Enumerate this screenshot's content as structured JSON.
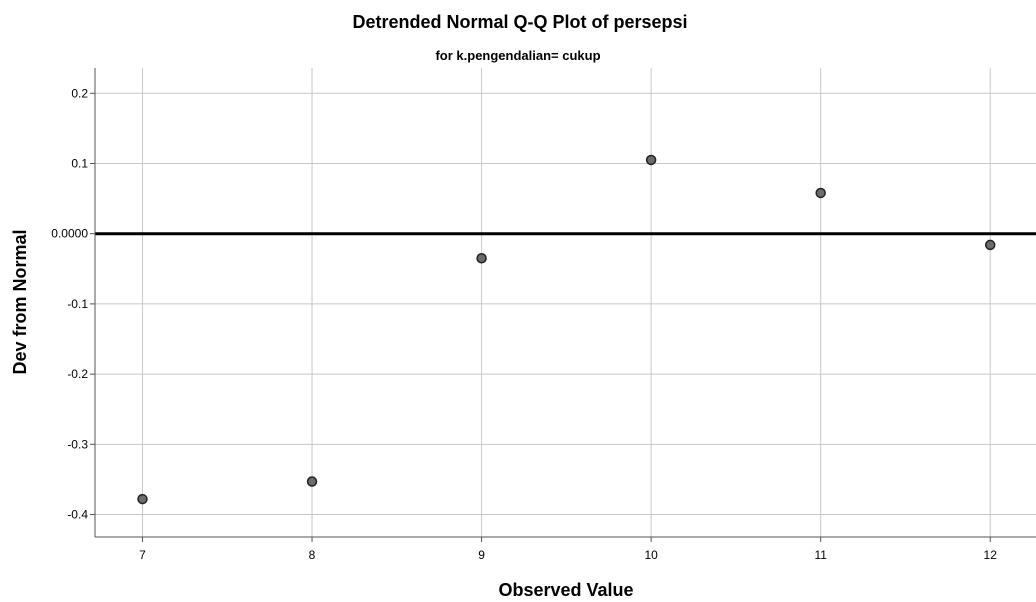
{
  "chart_data": {
    "type": "scatter",
    "title": "Detrended Normal Q-Q Plot of persepsi",
    "subtitle": "for k.pengendalian= cukup",
    "xlabel": "Observed Value",
    "ylabel": "Dev from Normal",
    "x_ticks": [
      7,
      8,
      9,
      10,
      11,
      12
    ],
    "x_tick_labels": [
      "7",
      "8",
      "9",
      "10",
      "11",
      "12"
    ],
    "y_ticks": [
      0.2,
      0.1,
      0.0,
      -0.1,
      -0.2,
      -0.3,
      -0.4
    ],
    "y_tick_labels": [
      "0.2",
      "0.1",
      "0.0000",
      "-0.1",
      "-0.2",
      "-0.3",
      "-0.4"
    ],
    "xlim": [
      6.72,
      12.27
    ],
    "ylim": [
      -0.432,
      0.236
    ],
    "grid": true,
    "reference_line": 0,
    "points": [
      {
        "x": 7,
        "y": -0.378
      },
      {
        "x": 8,
        "y": -0.353
      },
      {
        "x": 9,
        "y": -0.035
      },
      {
        "x": 10,
        "y": 0.105
      },
      {
        "x": 11,
        "y": 0.058
      },
      {
        "x": 12,
        "y": -0.016
      }
    ],
    "colors": {
      "marker_fill": "#6b6b6b",
      "marker_stroke": "#222222",
      "grid": "#c8c8c8",
      "axis": "#555555",
      "reference": "#000000"
    }
  }
}
